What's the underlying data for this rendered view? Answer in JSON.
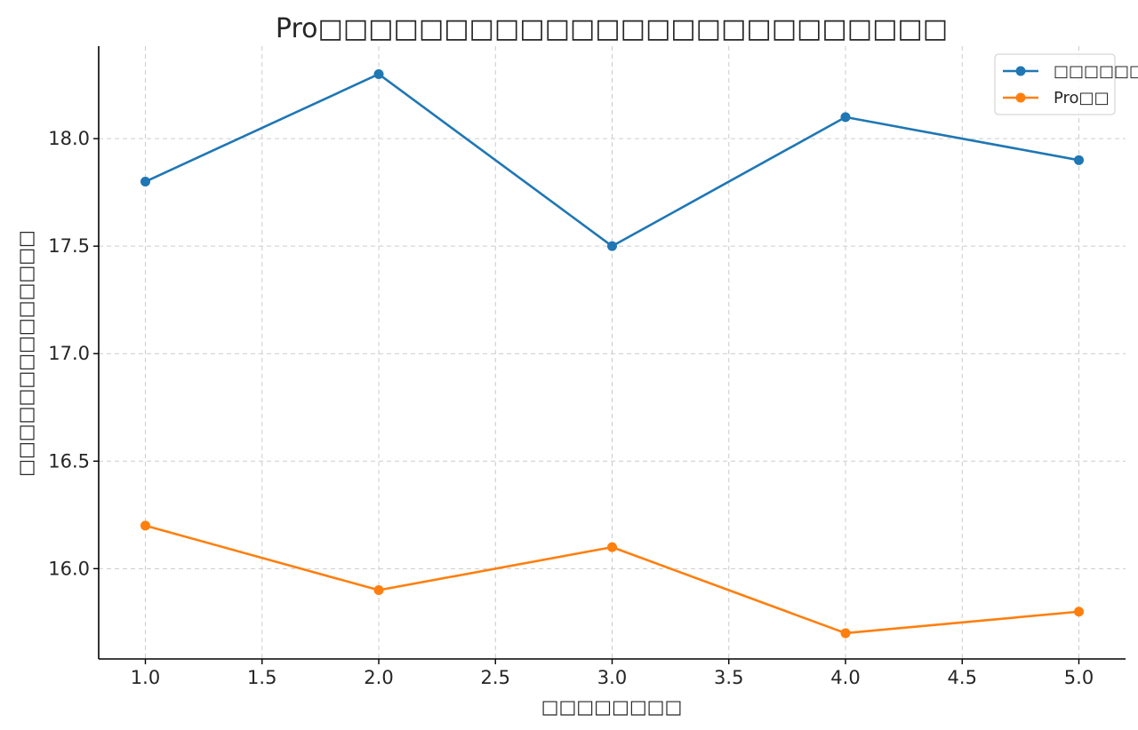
{
  "chart_data": {
    "type": "line",
    "title": "Pro□□□□□□□□□□□□□□□□□□□□□□□□□",
    "xlabel": "□□□□□□□□",
    "ylabel": "□□□□□□□□□□□□□□",
    "xlim": [
      0.8,
      5.2
    ],
    "ylim": [
      15.58,
      18.43
    ],
    "x": [
      1.0,
      2.0,
      3.0,
      4.0,
      5.0
    ],
    "xticks": [
      1.0,
      1.5,
      2.0,
      2.5,
      3.0,
      3.5,
      4.0,
      4.5,
      5.0
    ],
    "xtick_labels": [
      "1.0",
      "1.5",
      "2.0",
      "2.5",
      "3.0",
      "3.5",
      "4.0",
      "4.5",
      "5.0"
    ],
    "yticks": [
      16.0,
      16.5,
      17.0,
      17.5,
      18.0
    ],
    "ytick_labels": [
      "16.0",
      "16.5",
      "17.0",
      "17.5",
      "18.0"
    ],
    "grid": true,
    "legend_position": "top-right",
    "series": [
      {
        "name": "□□□□□□□",
        "color": "#1f77b4",
        "marker": "circle",
        "values": [
          17.8,
          18.3,
          17.5,
          18.1,
          17.9
        ]
      },
      {
        "name": "Pro□□",
        "color": "#ff7f0e",
        "marker": "circle",
        "values": [
          16.2,
          15.9,
          16.1,
          15.7,
          15.8
        ]
      }
    ]
  }
}
